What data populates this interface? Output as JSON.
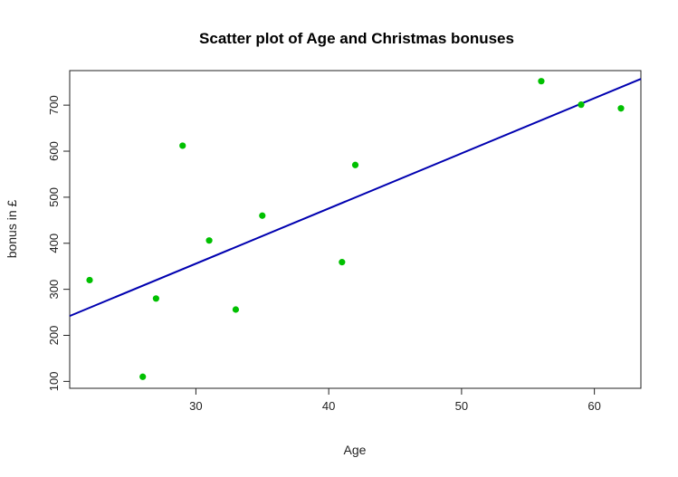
{
  "chart_data": {
    "type": "scatter",
    "title": "Scatter plot of Age and Christmas bonuses",
    "xlabel": "Age",
    "ylabel": "bonus in £",
    "xlim": [
      20.5,
      63.5
    ],
    "ylim": [
      85,
      775
    ],
    "x_ticks": [
      30,
      40,
      50,
      60
    ],
    "y_ticks": [
      100,
      200,
      300,
      400,
      500,
      600,
      700
    ],
    "point_color": "#00c000",
    "line_color": "#0000b0",
    "grid": false,
    "points": [
      {
        "x": 22,
        "y": 320
      },
      {
        "x": 26,
        "y": 110
      },
      {
        "x": 27,
        "y": 280
      },
      {
        "x": 29,
        "y": 612
      },
      {
        "x": 31,
        "y": 406
      },
      {
        "x": 33,
        "y": 256
      },
      {
        "x": 35,
        "y": 460
      },
      {
        "x": 41,
        "y": 359
      },
      {
        "x": 42,
        "y": 570
      },
      {
        "x": 56,
        "y": 752
      },
      {
        "x": 59,
        "y": 701
      },
      {
        "x": 62,
        "y": 693
      }
    ],
    "regression_line": {
      "from": {
        "x": 20.5,
        "y": 242
      },
      "to": {
        "x": 63.5,
        "y": 757
      }
    }
  }
}
